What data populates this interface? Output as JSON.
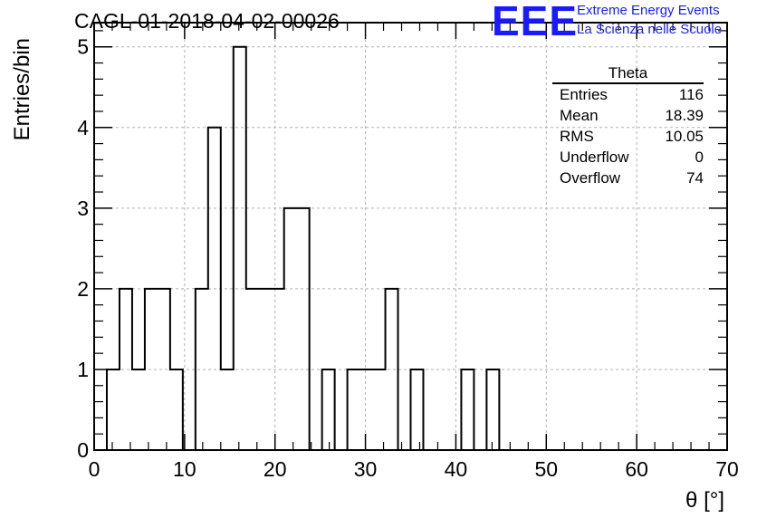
{
  "title": "CAGL-01-2018-04-02-00026",
  "logo": {
    "mark": "EEE",
    "line1": "Extreme Energy Events",
    "line2": "La Scienza nelle Scuole"
  },
  "stats_box": {
    "title": "Theta",
    "rows": [
      {
        "label": "Entries",
        "value": "116"
      },
      {
        "label": "Mean",
        "value": "18.39"
      },
      {
        "label": "RMS",
        "value": "10.05"
      },
      {
        "label": "Underflow",
        "value": "0"
      },
      {
        "label": "Overflow",
        "value": "74"
      }
    ]
  },
  "chart_data": {
    "type": "bar",
    "style": "step-histogram",
    "xlabel": "θ [°]",
    "ylabel": "Entries/bin",
    "xlim": [
      0,
      70
    ],
    "ylim": [
      0,
      5.3
    ],
    "xticks": [
      0,
      10,
      20,
      30,
      40,
      50,
      60,
      70
    ],
    "yticks": [
      0,
      1,
      2,
      3,
      4,
      5
    ],
    "grid": true,
    "bin_width": 1.4,
    "bin_start": 1.4,
    "values": [
      1,
      2,
      1,
      2,
      2,
      1,
      0,
      2,
      4,
      1,
      5,
      2,
      2,
      2,
      3,
      3,
      0,
      1,
      0,
      1,
      1,
      1,
      2,
      0,
      1,
      0,
      0,
      0,
      1,
      0,
      1,
      0
    ]
  }
}
